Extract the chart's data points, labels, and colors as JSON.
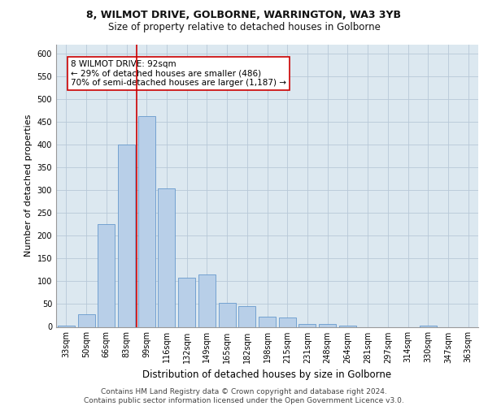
{
  "title_line1": "8, WILMOT DRIVE, GOLBORNE, WARRINGTON, WA3 3YB",
  "title_line2": "Size of property relative to detached houses in Golborne",
  "xlabel": "Distribution of detached houses by size in Golborne",
  "ylabel": "Number of detached properties",
  "categories": [
    "33sqm",
    "50sqm",
    "66sqm",
    "83sqm",
    "99sqm",
    "116sqm",
    "132sqm",
    "149sqm",
    "165sqm",
    "182sqm",
    "198sqm",
    "215sqm",
    "231sqm",
    "248sqm",
    "264sqm",
    "281sqm",
    "297sqm",
    "314sqm",
    "330sqm",
    "347sqm",
    "363sqm"
  ],
  "values": [
    3,
    28,
    225,
    400,
    463,
    305,
    108,
    115,
    53,
    45,
    22,
    20,
    7,
    7,
    3,
    0,
    0,
    0,
    3,
    0,
    0
  ],
  "bar_color": "#b8cfe8",
  "bar_edge_color": "#6699cc",
  "vline_color": "#cc0000",
  "annotation_text": "8 WILMOT DRIVE: 92sqm\n← 29% of detached houses are smaller (486)\n70% of semi-detached houses are larger (1,187) →",
  "annotation_box_color": "#ffffff",
  "annotation_box_edge": "#cc0000",
  "ylim": [
    0,
    620
  ],
  "yticks": [
    0,
    50,
    100,
    150,
    200,
    250,
    300,
    350,
    400,
    450,
    500,
    550,
    600
  ],
  "grid_color": "#b8c8d8",
  "background_color": "#dce8f0",
  "footer_line1": "Contains HM Land Registry data © Crown copyright and database right 2024.",
  "footer_line2": "Contains public sector information licensed under the Open Government Licence v3.0.",
  "title_fontsize": 9,
  "subtitle_fontsize": 8.5,
  "axis_label_fontsize": 8,
  "tick_fontsize": 7,
  "annotation_fontsize": 7.5,
  "footer_fontsize": 6.5
}
